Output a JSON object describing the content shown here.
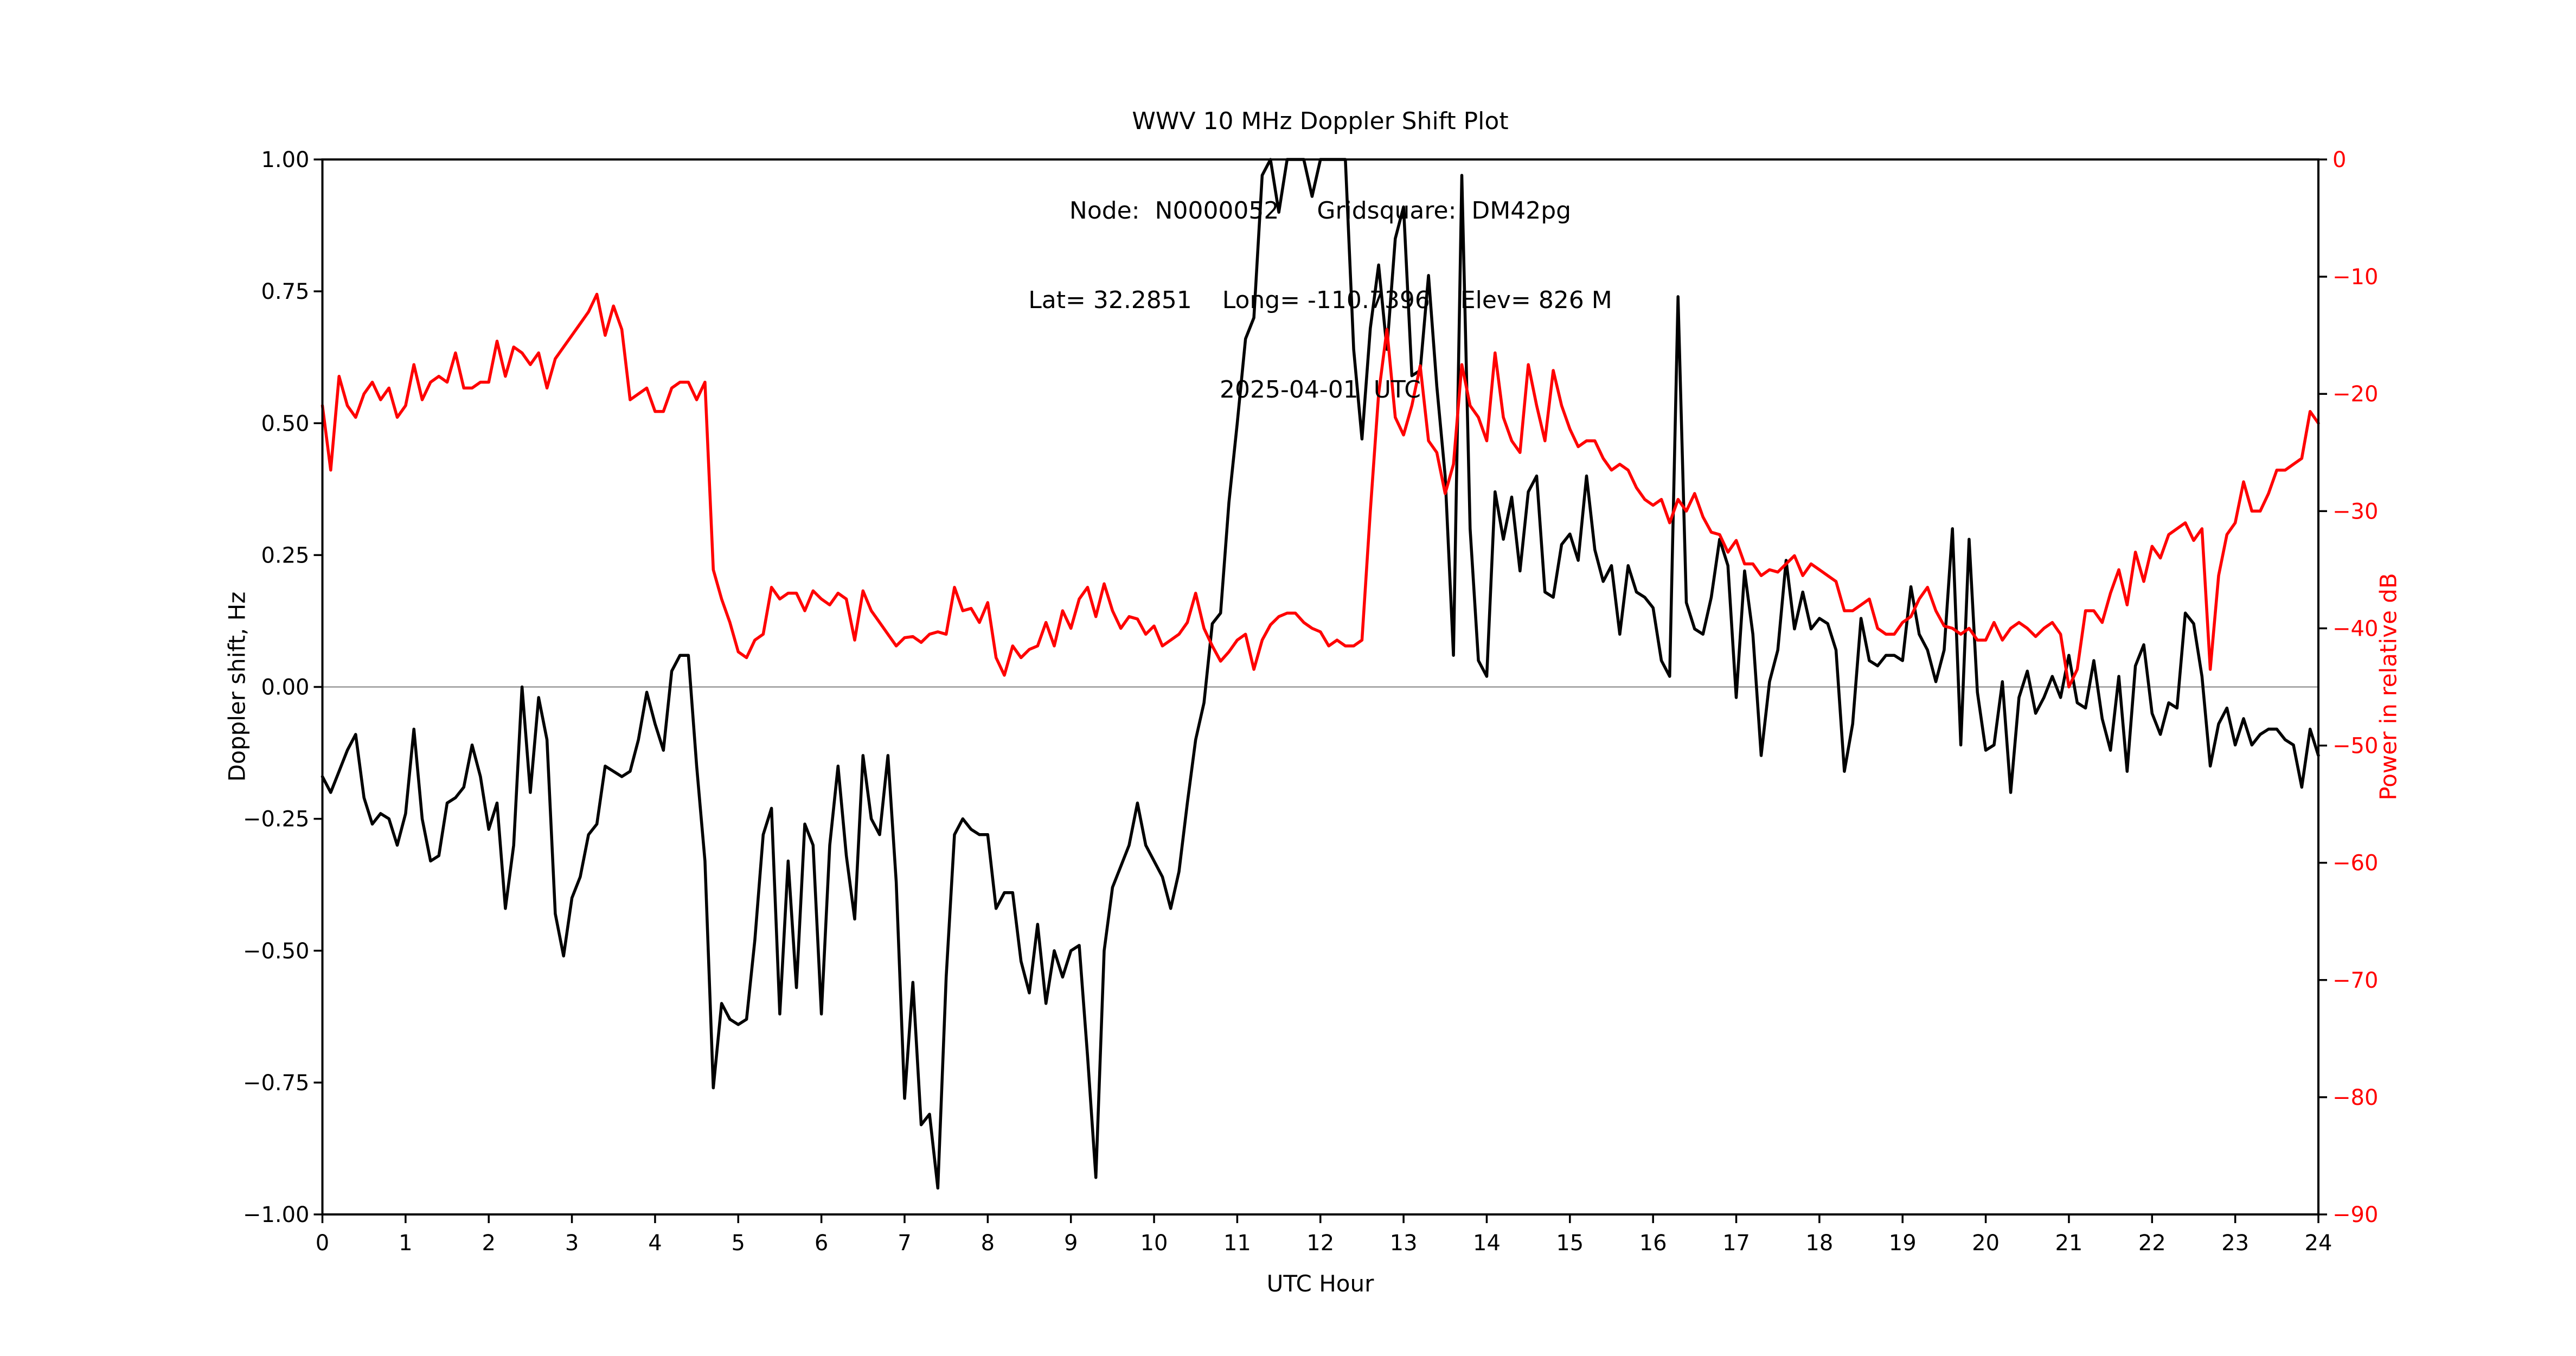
{
  "title": {
    "line1": "WWV 10 MHz Doppler Shift Plot",
    "line2": "Node:  N0000052     Gridsquare:  DM42pg",
    "line3": "Lat= 32.2851    Long= -110.7396    Elev= 826 M",
    "line4": "2025-04-01  UTC"
  },
  "colors": {
    "doppler_trace": "#000000",
    "power_trace": "#ff0000",
    "zero_line": "#999999",
    "spine": "#000000",
    "background": "#ffffff",
    "right_tick_labels": "#ff0000"
  },
  "chart_data": {
    "type": "line",
    "title": "WWV 10 MHz Doppler Shift Plot",
    "subtitle_lines": [
      "Node:  N0000052     Gridsquare:  DM42pg",
      "Lat= 32.2851    Long= -110.7396    Elev= 826 M",
      "2025-04-01  UTC"
    ],
    "xlabel": "UTC Hour",
    "x_range": [
      0,
      24
    ],
    "x_tick_values": [
      0,
      1,
      2,
      3,
      4,
      5,
      6,
      7,
      8,
      9,
      10,
      11,
      12,
      13,
      14,
      15,
      16,
      17,
      18,
      19,
      20,
      21,
      22,
      23,
      24
    ],
    "x_tick_labels": [
      "0",
      "1",
      "2",
      "3",
      "4",
      "5",
      "6",
      "7",
      "8",
      "9",
      "10",
      "11",
      "12",
      "13",
      "14",
      "15",
      "16",
      "17",
      "18",
      "19",
      "20",
      "21",
      "22",
      "23",
      "24"
    ],
    "left_axis": {
      "label": "Doppler shift, Hz",
      "range": [
        -1.0,
        1.0
      ],
      "tick_values": [
        1.0,
        0.75,
        0.5,
        0.25,
        0.0,
        -0.25,
        -0.5,
        -0.75,
        -1.0
      ],
      "tick_labels": [
        "1.00",
        "0.75",
        "0.50",
        "0.25",
        "0.00",
        "−0.25",
        "−0.50",
        "−0.75",
        "−1.00"
      ]
    },
    "right_axis": {
      "label": "Power in relative dB",
      "range": [
        -90,
        0
      ],
      "tick_values": [
        0,
        -10,
        -20,
        -30,
        -40,
        -50,
        -60,
        -70,
        -80,
        -90
      ],
      "tick_labels": [
        "0",
        "−10",
        "−20",
        "−30",
        "−40",
        "−50",
        "−60",
        "−70",
        "−80",
        "−90"
      ]
    },
    "grid": "zero-line-only",
    "legend": "none",
    "x_start": 0,
    "x_step": 0.1,
    "series": [
      {
        "name": "Doppler shift (Hz)",
        "axis": "left",
        "color": "#000000",
        "values": [
          -0.17,
          -0.2,
          -0.16,
          -0.12,
          -0.09,
          -0.21,
          -0.26,
          -0.24,
          -0.25,
          -0.3,
          -0.24,
          -0.08,
          -0.25,
          -0.33,
          -0.32,
          -0.22,
          -0.21,
          -0.19,
          -0.11,
          -0.17,
          -0.27,
          -0.22,
          -0.42,
          -0.3,
          0.0,
          -0.2,
          -0.02,
          -0.1,
          -0.43,
          -0.51,
          -0.4,
          -0.36,
          -0.28,
          -0.26,
          -0.15,
          -0.16,
          -0.17,
          -0.16,
          -0.1,
          -0.01,
          -0.07,
          -0.12,
          0.03,
          0.06,
          0.06,
          -0.15,
          -0.33,
          -0.76,
          -0.6,
          -0.63,
          -0.64,
          -0.63,
          -0.48,
          -0.28,
          -0.23,
          -0.62,
          -0.33,
          -0.57,
          -0.26,
          -0.3,
          -0.62,
          -0.3,
          -0.15,
          -0.32,
          -0.44,
          -0.13,
          -0.25,
          -0.28,
          -0.13,
          -0.37,
          -0.78,
          -0.56,
          -0.83,
          -0.81,
          -0.95,
          -0.55,
          -0.28,
          -0.25,
          -0.27,
          -0.28,
          -0.28,
          -0.42,
          -0.39,
          -0.39,
          -0.52,
          -0.58,
          -0.45,
          -0.6,
          -0.5,
          -0.55,
          -0.5,
          -0.49,
          -0.7,
          -0.93,
          -0.5,
          -0.38,
          -0.34,
          -0.3,
          -0.22,
          -0.3,
          -0.33,
          -0.36,
          -0.42,
          -0.35,
          -0.22,
          -0.1,
          -0.03,
          0.12,
          0.14,
          0.35,
          0.5,
          0.66,
          0.7,
          0.97,
          1.0,
          0.9,
          1.0,
          1.0,
          1.0,
          0.93,
          1.0,
          1.0,
          1.0,
          1.0,
          0.64,
          0.47,
          0.68,
          0.8,
          0.64,
          0.85,
          0.91,
          0.59,
          0.6,
          0.78,
          0.57,
          0.4,
          0.06,
          0.97,
          0.3,
          0.05,
          0.02,
          0.37,
          0.28,
          0.36,
          0.22,
          0.37,
          0.4,
          0.18,
          0.17,
          0.27,
          0.29,
          0.24,
          0.4,
          0.26,
          0.2,
          0.23,
          0.1,
          0.23,
          0.18,
          0.17,
          0.15,
          0.05,
          0.02,
          0.74,
          0.16,
          0.11,
          0.1,
          0.17,
          0.28,
          0.23,
          -0.02,
          0.22,
          0.1,
          -0.13,
          0.01,
          0.07,
          0.24,
          0.11,
          0.18,
          0.11,
          0.13,
          0.12,
          0.07,
          -0.16,
          -0.07,
          0.13,
          0.05,
          0.04,
          0.06,
          0.06,
          0.05,
          0.19,
          0.1,
          0.07,
          0.01,
          0.07,
          0.3,
          -0.11,
          0.28,
          -0.01,
          -0.12,
          -0.11,
          0.01,
          -0.2,
          -0.02,
          0.03,
          -0.05,
          -0.02,
          0.02,
          -0.02,
          0.06,
          -0.03,
          -0.04,
          0.05,
          -0.06,
          -0.12,
          0.02,
          -0.16,
          0.04,
          0.08,
          -0.05,
          -0.09,
          -0.03,
          -0.04,
          0.14,
          0.12,
          0.02,
          -0.15,
          -0.07,
          -0.04,
          -0.11,
          -0.06,
          -0.11,
          -0.09,
          -0.08,
          -0.08,
          -0.1,
          -0.11,
          -0.19,
          -0.08,
          -0.13
        ]
      },
      {
        "name": "Power in relative dB",
        "axis": "right",
        "color": "#ff0000",
        "values": [
          -21,
          -26.5,
          -18.5,
          -21,
          -22,
          -20,
          -19,
          -20.5,
          -19.5,
          -22,
          -21,
          -17.5,
          -20.5,
          -19,
          -18.5,
          -19,
          -16.5,
          -19.5,
          -19.5,
          -19,
          -19,
          -15.5,
          -18.5,
          -16,
          -16.5,
          -17.5,
          -16.5,
          -19.5,
          -17,
          -16,
          -15,
          -14,
          -13,
          -11.5,
          -15,
          -12.5,
          -14.5,
          -20.5,
          -20,
          -19.5,
          -21.5,
          -21.5,
          -19.5,
          -19,
          -19,
          -20.5,
          -19,
          -35,
          -37.5,
          -39.5,
          -42,
          -42.5,
          -41,
          -40.5,
          -36.5,
          -37.5,
          -37,
          -37,
          -38.5,
          -36.8,
          -37.5,
          -38,
          -37,
          -37.5,
          -41,
          -36.8,
          -38.5,
          -39.5,
          -40.5,
          -41.5,
          -40.8,
          -40.7,
          -41.2,
          -40.5,
          -40.3,
          -40.5,
          -36.5,
          -38.5,
          -38.3,
          -39.5,
          -37.8,
          -42.5,
          -44,
          -41.5,
          -42.5,
          -41.8,
          -41.5,
          -39.5,
          -41.5,
          -38.5,
          -40,
          -37.5,
          -36.5,
          -39,
          -36.2,
          -38.5,
          -40,
          -39,
          -39.2,
          -40.5,
          -39.8,
          -41.5,
          -41,
          -40.5,
          -39.5,
          -37,
          -40,
          -41.5,
          -42.8,
          -42,
          -41,
          -40.5,
          -43.5,
          -41,
          -39.7,
          -39,
          -38.7,
          -38.7,
          -39.5,
          -40,
          -40.3,
          -41.5,
          -41,
          -41.5,
          -41.5,
          -41,
          -30,
          -20,
          -14.5,
          -22,
          -23.5,
          -21,
          -17.6,
          -24,
          -25,
          -28.5,
          -26,
          -17.5,
          -21,
          -22,
          -24,
          -16.5,
          -22,
          -24,
          -25,
          -17.5,
          -21,
          -24,
          -18,
          -21,
          -23,
          -24.5,
          -24,
          -24,
          -25.5,
          -26.5,
          -26,
          -26.5,
          -28,
          -29,
          -29.5,
          -29,
          -31,
          -29,
          -30,
          -28.5,
          -30.5,
          -31.8,
          -32,
          -33.5,
          -32.5,
          -34.5,
          -34.5,
          -35.5,
          -35,
          -35.2,
          -34.5,
          -33.8,
          -35.5,
          -34.5,
          -35,
          -35.5,
          -36,
          -38.5,
          -38.5,
          -38,
          -37.5,
          -40,
          -40.5,
          -40.5,
          -39.5,
          -39,
          -37.5,
          -36.5,
          -38.5,
          -39.8,
          -40,
          -40.5,
          -40,
          -41,
          -41,
          -39.5,
          -41,
          -40,
          -39.5,
          -40,
          -40.7,
          -40,
          -39.5,
          -40.5,
          -45,
          -43.5,
          -38.5,
          -38.5,
          -39.5,
          -37,
          -35,
          -38,
          -33.5,
          -36,
          -33,
          -34,
          -32,
          -31.5,
          -31,
          -32.5,
          -31.5,
          -43.5,
          -35.5,
          -32,
          -31,
          -27.5,
          -30,
          -30,
          -28.5,
          -26.5,
          -26.5,
          -26,
          -25.5,
          -21.5,
          -22.5
        ]
      }
    ]
  }
}
